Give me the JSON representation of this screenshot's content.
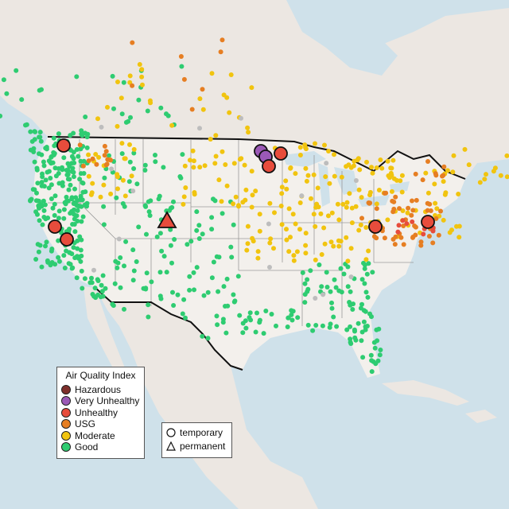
{
  "legend": {
    "title": "Air Quality Index",
    "categories": [
      {
        "label": "Hazardous",
        "color": "#7e2f2b"
      },
      {
        "label": "Very Unhealthy",
        "color": "#9b59b6"
      },
      {
        "label": "Unhealthy",
        "color": "#e74c3c"
      },
      {
        "label": "USG",
        "color": "#e67e22"
      },
      {
        "label": "Moderate",
        "color": "#f1c40f"
      },
      {
        "label": "Good",
        "color": "#2ecc71"
      }
    ]
  },
  "monitor_types": [
    {
      "label": "temporary",
      "icon": "circle-icon"
    },
    {
      "label": "permanent",
      "icon": "triangle-icon"
    }
  ],
  "colors": {
    "water": "#cfe1ea",
    "land": "#ece7e2",
    "us_land": "#f3f0ec",
    "border": "#111111",
    "state_lines": "#9a9a9a",
    "no_data": "#bdbdbd"
  }
}
